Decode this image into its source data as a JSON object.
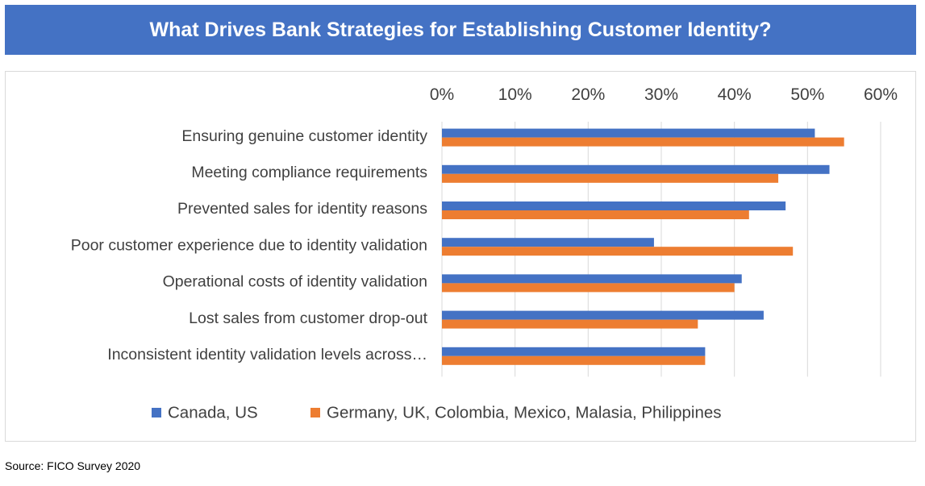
{
  "title": "What Drives Bank Strategies for Establishing Customer Identity?",
  "source": "Source: FICO Survey 2020",
  "colors": {
    "title_bg": "#4472C4",
    "series1": "#4472C4",
    "series2": "#ED7D31",
    "grid": "#d9d9d9",
    "text": "#404040"
  },
  "chart_data": {
    "type": "bar",
    "orientation": "horizontal",
    "x_axis_position": "top",
    "grid": true,
    "legend_position": "bottom",
    "categories": [
      "Ensuring genuine customer identity",
      "Meeting compliance requirements",
      "Prevented sales for identity  reasons",
      "Poor customer experience due to identity validation",
      "Operational costs of identity validation",
      "Lost sales from customer drop-out",
      "Inconsistent identity validation levels across…"
    ],
    "series": [
      {
        "name": "Canada, US",
        "values": [
          51,
          53,
          47,
          29,
          41,
          44,
          36
        ]
      },
      {
        "name": "Germany, UK, Colombia, Mexico, Malasia, Philippines",
        "values": [
          55,
          46,
          42,
          48,
          40,
          35,
          36
        ]
      }
    ],
    "xlim": [
      0,
      60
    ],
    "xticks": [
      "0%",
      "10%",
      "20%",
      "30%",
      "40%",
      "50%",
      "60%"
    ],
    "xtick_values": [
      0,
      10,
      20,
      30,
      40,
      50,
      60
    ]
  }
}
